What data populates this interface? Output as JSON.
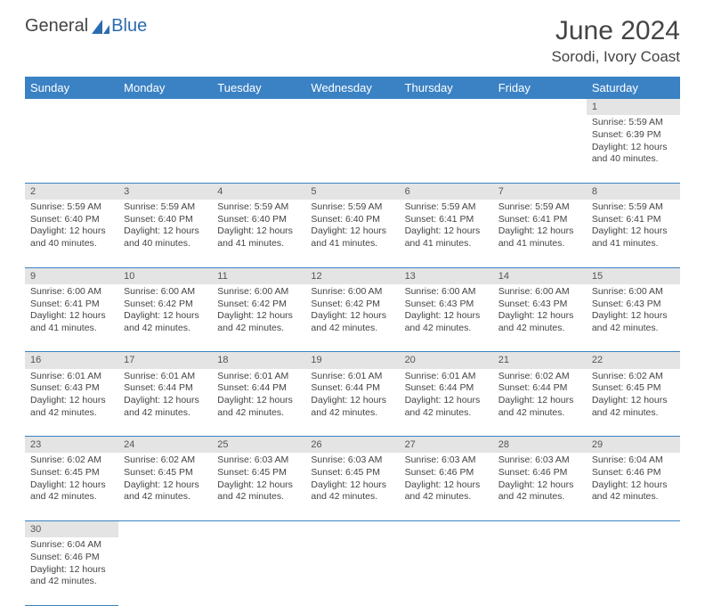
{
  "brand": {
    "part1": "General",
    "part2": "Blue"
  },
  "title": "June 2024",
  "location": "Sorodi, Ivory Coast",
  "colors": {
    "header_bg": "#3b82c4",
    "header_fg": "#ffffff",
    "daynum_bg": "#e4e4e4",
    "border": "#3b82c4",
    "text": "#444444",
    "brand_blue": "#2b6cb0"
  },
  "typography": {
    "title_fontsize": 30,
    "location_fontsize": 17,
    "dayheader_fontsize": 13,
    "cell_fontsize": 10.5
  },
  "day_headers": [
    "Sunday",
    "Monday",
    "Tuesday",
    "Wednesday",
    "Thursday",
    "Friday",
    "Saturday"
  ],
  "weeks": [
    {
      "nums": [
        "",
        "",
        "",
        "",
        "",
        "",
        "1"
      ],
      "details": [
        "",
        "",
        "",
        "",
        "",
        "",
        "Sunrise: 5:59 AM\nSunset: 6:39 PM\nDaylight: 12 hours and 40 minutes."
      ]
    },
    {
      "nums": [
        "2",
        "3",
        "4",
        "5",
        "6",
        "7",
        "8"
      ],
      "details": [
        "Sunrise: 5:59 AM\nSunset: 6:40 PM\nDaylight: 12 hours and 40 minutes.",
        "Sunrise: 5:59 AM\nSunset: 6:40 PM\nDaylight: 12 hours and 40 minutes.",
        "Sunrise: 5:59 AM\nSunset: 6:40 PM\nDaylight: 12 hours and 41 minutes.",
        "Sunrise: 5:59 AM\nSunset: 6:40 PM\nDaylight: 12 hours and 41 minutes.",
        "Sunrise: 5:59 AM\nSunset: 6:41 PM\nDaylight: 12 hours and 41 minutes.",
        "Sunrise: 5:59 AM\nSunset: 6:41 PM\nDaylight: 12 hours and 41 minutes.",
        "Sunrise: 5:59 AM\nSunset: 6:41 PM\nDaylight: 12 hours and 41 minutes."
      ]
    },
    {
      "nums": [
        "9",
        "10",
        "11",
        "12",
        "13",
        "14",
        "15"
      ],
      "details": [
        "Sunrise: 6:00 AM\nSunset: 6:41 PM\nDaylight: 12 hours and 41 minutes.",
        "Sunrise: 6:00 AM\nSunset: 6:42 PM\nDaylight: 12 hours and 42 minutes.",
        "Sunrise: 6:00 AM\nSunset: 6:42 PM\nDaylight: 12 hours and 42 minutes.",
        "Sunrise: 6:00 AM\nSunset: 6:42 PM\nDaylight: 12 hours and 42 minutes.",
        "Sunrise: 6:00 AM\nSunset: 6:43 PM\nDaylight: 12 hours and 42 minutes.",
        "Sunrise: 6:00 AM\nSunset: 6:43 PM\nDaylight: 12 hours and 42 minutes.",
        "Sunrise: 6:00 AM\nSunset: 6:43 PM\nDaylight: 12 hours and 42 minutes."
      ]
    },
    {
      "nums": [
        "16",
        "17",
        "18",
        "19",
        "20",
        "21",
        "22"
      ],
      "details": [
        "Sunrise: 6:01 AM\nSunset: 6:43 PM\nDaylight: 12 hours and 42 minutes.",
        "Sunrise: 6:01 AM\nSunset: 6:44 PM\nDaylight: 12 hours and 42 minutes.",
        "Sunrise: 6:01 AM\nSunset: 6:44 PM\nDaylight: 12 hours and 42 minutes.",
        "Sunrise: 6:01 AM\nSunset: 6:44 PM\nDaylight: 12 hours and 42 minutes.",
        "Sunrise: 6:01 AM\nSunset: 6:44 PM\nDaylight: 12 hours and 42 minutes.",
        "Sunrise: 6:02 AM\nSunset: 6:44 PM\nDaylight: 12 hours and 42 minutes.",
        "Sunrise: 6:02 AM\nSunset: 6:45 PM\nDaylight: 12 hours and 42 minutes."
      ]
    },
    {
      "nums": [
        "23",
        "24",
        "25",
        "26",
        "27",
        "28",
        "29"
      ],
      "details": [
        "Sunrise: 6:02 AM\nSunset: 6:45 PM\nDaylight: 12 hours and 42 minutes.",
        "Sunrise: 6:02 AM\nSunset: 6:45 PM\nDaylight: 12 hours and 42 minutes.",
        "Sunrise: 6:03 AM\nSunset: 6:45 PM\nDaylight: 12 hours and 42 minutes.",
        "Sunrise: 6:03 AM\nSunset: 6:45 PM\nDaylight: 12 hours and 42 minutes.",
        "Sunrise: 6:03 AM\nSunset: 6:46 PM\nDaylight: 12 hours and 42 minutes.",
        "Sunrise: 6:03 AM\nSunset: 6:46 PM\nDaylight: 12 hours and 42 minutes.",
        "Sunrise: 6:04 AM\nSunset: 6:46 PM\nDaylight: 12 hours and 42 minutes."
      ]
    },
    {
      "nums": [
        "30",
        "",
        "",
        "",
        "",
        "",
        ""
      ],
      "details": [
        "Sunrise: 6:04 AM\nSunset: 6:46 PM\nDaylight: 12 hours and 42 minutes.",
        "",
        "",
        "",
        "",
        "",
        ""
      ]
    }
  ]
}
